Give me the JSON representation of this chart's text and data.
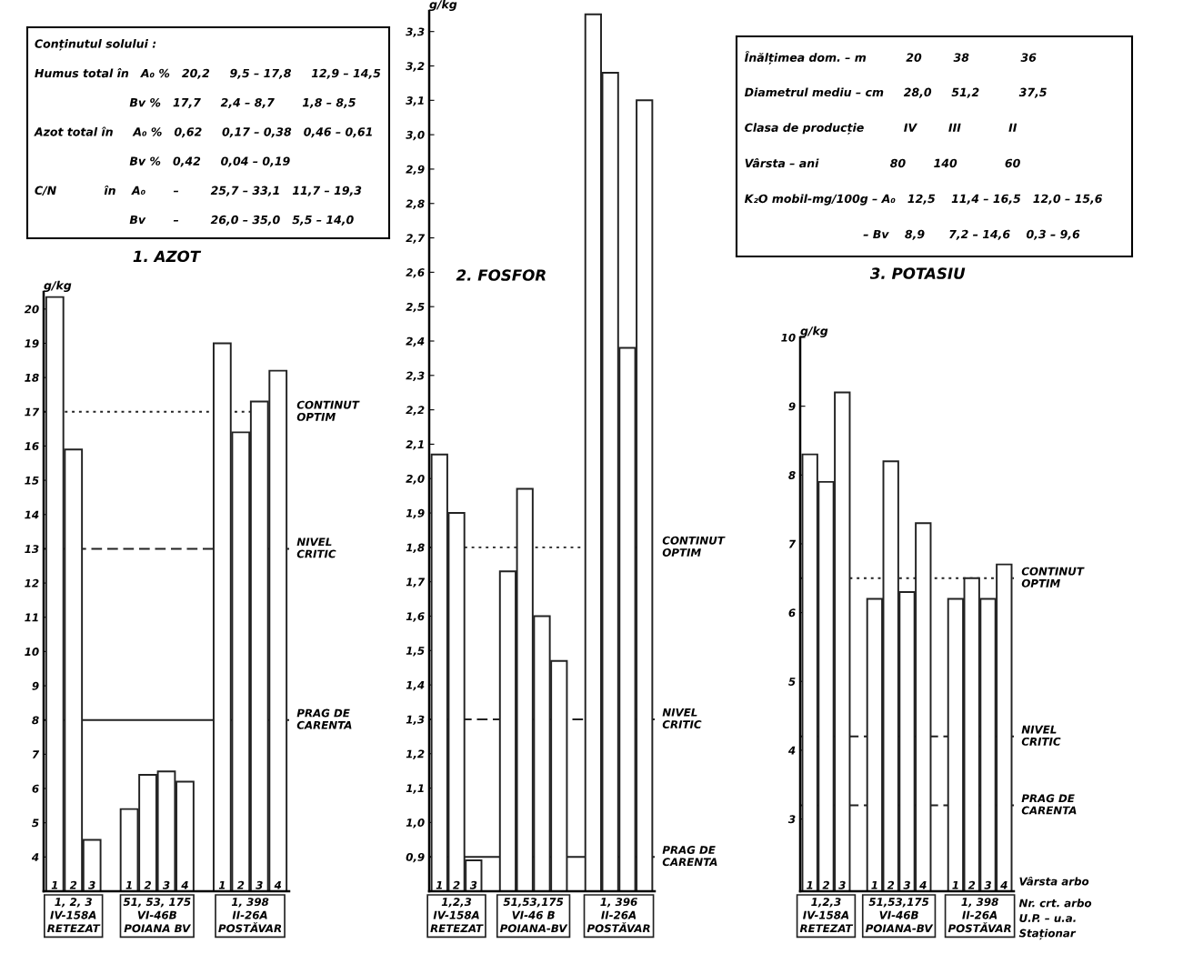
{
  "chart_data": [
    {
      "type": "other",
      "annotations": [
        "Conținutul solului :",
        "Humus total în   A₀ %   20,2     9,5 – 17,8     12,9 – 14,5",
        "                        Bv %   17,7     2,4 – 8,7       1,8 – 8,5",
        "Azot total în     A₀ %   0,62     0,17 – 0,38   0,46 – 0,61",
        "                        Bv %   0,42     0,04 – 0,19",
        "C/N            în    A₀       –        25,7 – 33,1   11,7 – 19,3",
        "                        Bv       –        26,0 – 35,0   5,5 – 14,0"
      ]
    },
    {
      "type": "bar",
      "title": "1. AZOT",
      "ylabel": "g/kg",
      "categories": [
        "1",
        "2",
        "3",
        null,
        "1",
        "2",
        "3",
        "4",
        null,
        "1",
        "2",
        "3",
        "4"
      ],
      "values": [
        20.35,
        15.9,
        4.5,
        null,
        5.4,
        6.4,
        6.5,
        6.2,
        null,
        19.0,
        16.4,
        17.3,
        18.2
      ],
      "color": "#ffffff",
      "ylim": [
        3,
        20.5
      ],
      "yticks": [
        4,
        5,
        6,
        7,
        8,
        9,
        10,
        11,
        12,
        13,
        14,
        15,
        16,
        17,
        18,
        19,
        20
      ],
      "ref_lines": [
        {
          "axis": "y",
          "value": 17,
          "label": "CONTINUT\nOPTIM",
          "line_style": "dotted"
        },
        {
          "axis": "y",
          "value": 13,
          "label": "NIVEL\nCRITIC",
          "line_style": "dashed"
        },
        {
          "axis": "y",
          "value": 8,
          "label": "PRAG DE\nCARENTA",
          "line_style": "solid"
        }
      ],
      "annotations": [
        "1, 2, 3\nIV-158A\nRETEZAT",
        "51, 53, 175\nVI-46B\nPOIANA BV",
        "1, 398\nII-26A\nPOSTĂVAR"
      ]
    },
    {
      "type": "bar",
      "title": "2. FOSFOR",
      "ylabel": "g/kg",
      "categories": [
        "1",
        "2",
        "3",
        null,
        null,
        null,
        null,
        null,
        null,
        null,
        null,
        null,
        null
      ],
      "values": [
        2.07,
        1.9,
        0.89,
        null,
        1.73,
        1.97,
        1.6,
        1.47,
        null,
        3.35,
        3.18,
        2.38,
        3.1
      ],
      "color": "#ffffff",
      "ylim": [
        0.8,
        3.36
      ],
      "yticks": [
        {
          "value": 0.9,
          "label": "0,9"
        },
        {
          "value": 1.0,
          "label": "1,0"
        },
        {
          "value": 1.1,
          "label": "1,1"
        },
        {
          "value": 1.2,
          "label": "1,2"
        },
        {
          "value": 1.3,
          "label": "1,3"
        },
        {
          "value": 1.4,
          "label": "1,4"
        },
        {
          "value": 1.5,
          "label": "1,5"
        },
        {
          "value": 1.6,
          "label": "1,6"
        },
        {
          "value": 1.7,
          "label": "1,7"
        },
        {
          "value": 1.8,
          "label": "1,8"
        },
        {
          "value": 1.9,
          "label": "1,9"
        },
        {
          "value": 2.0,
          "label": "2,0"
        },
        {
          "value": 2.1,
          "label": "2,1"
        },
        {
          "value": 2.2,
          "label": "2,2"
        },
        {
          "value": 2.3,
          "label": "2,3"
        },
        {
          "value": 2.4,
          "label": "2,4"
        },
        {
          "value": 2.5,
          "label": "2,5"
        },
        {
          "value": 2.6,
          "label": "2,6"
        },
        {
          "value": 2.7,
          "label": "2,7"
        },
        {
          "value": 2.8,
          "label": "2,8"
        },
        {
          "value": 2.9,
          "label": "2,9"
        },
        {
          "value": 3.0,
          "label": "3,0"
        },
        {
          "value": 3.1,
          "label": "3,1"
        },
        {
          "value": 3.2,
          "label": "3,2"
        },
        {
          "value": 3.3,
          "label": "3,3"
        }
      ],
      "ref_lines": [
        {
          "axis": "y",
          "value": 1.8,
          "label": "CONTINUT\nOPTIM",
          "line_style": "dotted"
        },
        {
          "axis": "y",
          "value": 1.3,
          "label": "NIVEL\nCRITIC",
          "line_style": "dashed"
        },
        {
          "axis": "y",
          "value": 0.9,
          "label": "PRAG DE\nCARENTA",
          "line_style": "solid"
        }
      ],
      "annotations": [
        "1,2,3\nIV-158A\nRETEZAT",
        "51,53,175\nVI-46 B\nPOIANA-BV",
        "1, 396\nII-26A\nPOSTĂVAR"
      ]
    },
    {
      "type": "other",
      "annotations": [
        "Înălțimea dom. – m          20        38             36",
        "Diametrul mediu – cm     28,0     51,2          37,5",
        "Clasa de producție          IV        III            II",
        "Vârsta – ani                  80       140            60",
        "K₂O mobil-mg/100g – A₀   12,5    11,4 – 16,5   12,0 – 15,6",
        "                              – Bv    8,9      7,2 – 14,6    0,3 – 9,6"
      ]
    },
    {
      "type": "bar",
      "title": "3. POTASIU",
      "ylabel": "g/kg",
      "categories": [
        "1",
        "2",
        "3",
        null,
        "1",
        "2",
        "3",
        "4",
        null,
        "1",
        "2",
        "3",
        "4"
      ],
      "values": [
        8.3,
        7.9,
        9.2,
        null,
        6.2,
        8.2,
        6.3,
        7.3,
        null,
        6.2,
        6.5,
        6.2,
        6.7
      ],
      "color": "#ffffff",
      "ylim": [
        1.95,
        10
      ],
      "yticks": [
        3,
        4,
        5,
        6,
        7,
        8,
        9,
        10
      ],
      "ref_lines": [
        {
          "axis": "y",
          "value": 6.5,
          "label": "CONTINUT\nOPTIM",
          "line_style": "dotted"
        },
        {
          "axis": "y",
          "value": 4.2,
          "label": "NIVEL\nCRITIC",
          "line_style": "dashed"
        },
        {
          "axis": "y",
          "value": 3.2,
          "label": "PRAG DE\nCARENTA",
          "line_style": "dashed"
        }
      ],
      "annotations": [
        "1,2,3\nIV-158A\nRETEZAT",
        "51,53,175\nVI-46B\nPOIANA-BV",
        "1, 398\nII-26A\nPOSTĂVAR",
        "Vârsta arbo",
        "Nr. crt. arbo",
        "U.P. – u.a.",
        "Staționar"
      ]
    }
  ]
}
